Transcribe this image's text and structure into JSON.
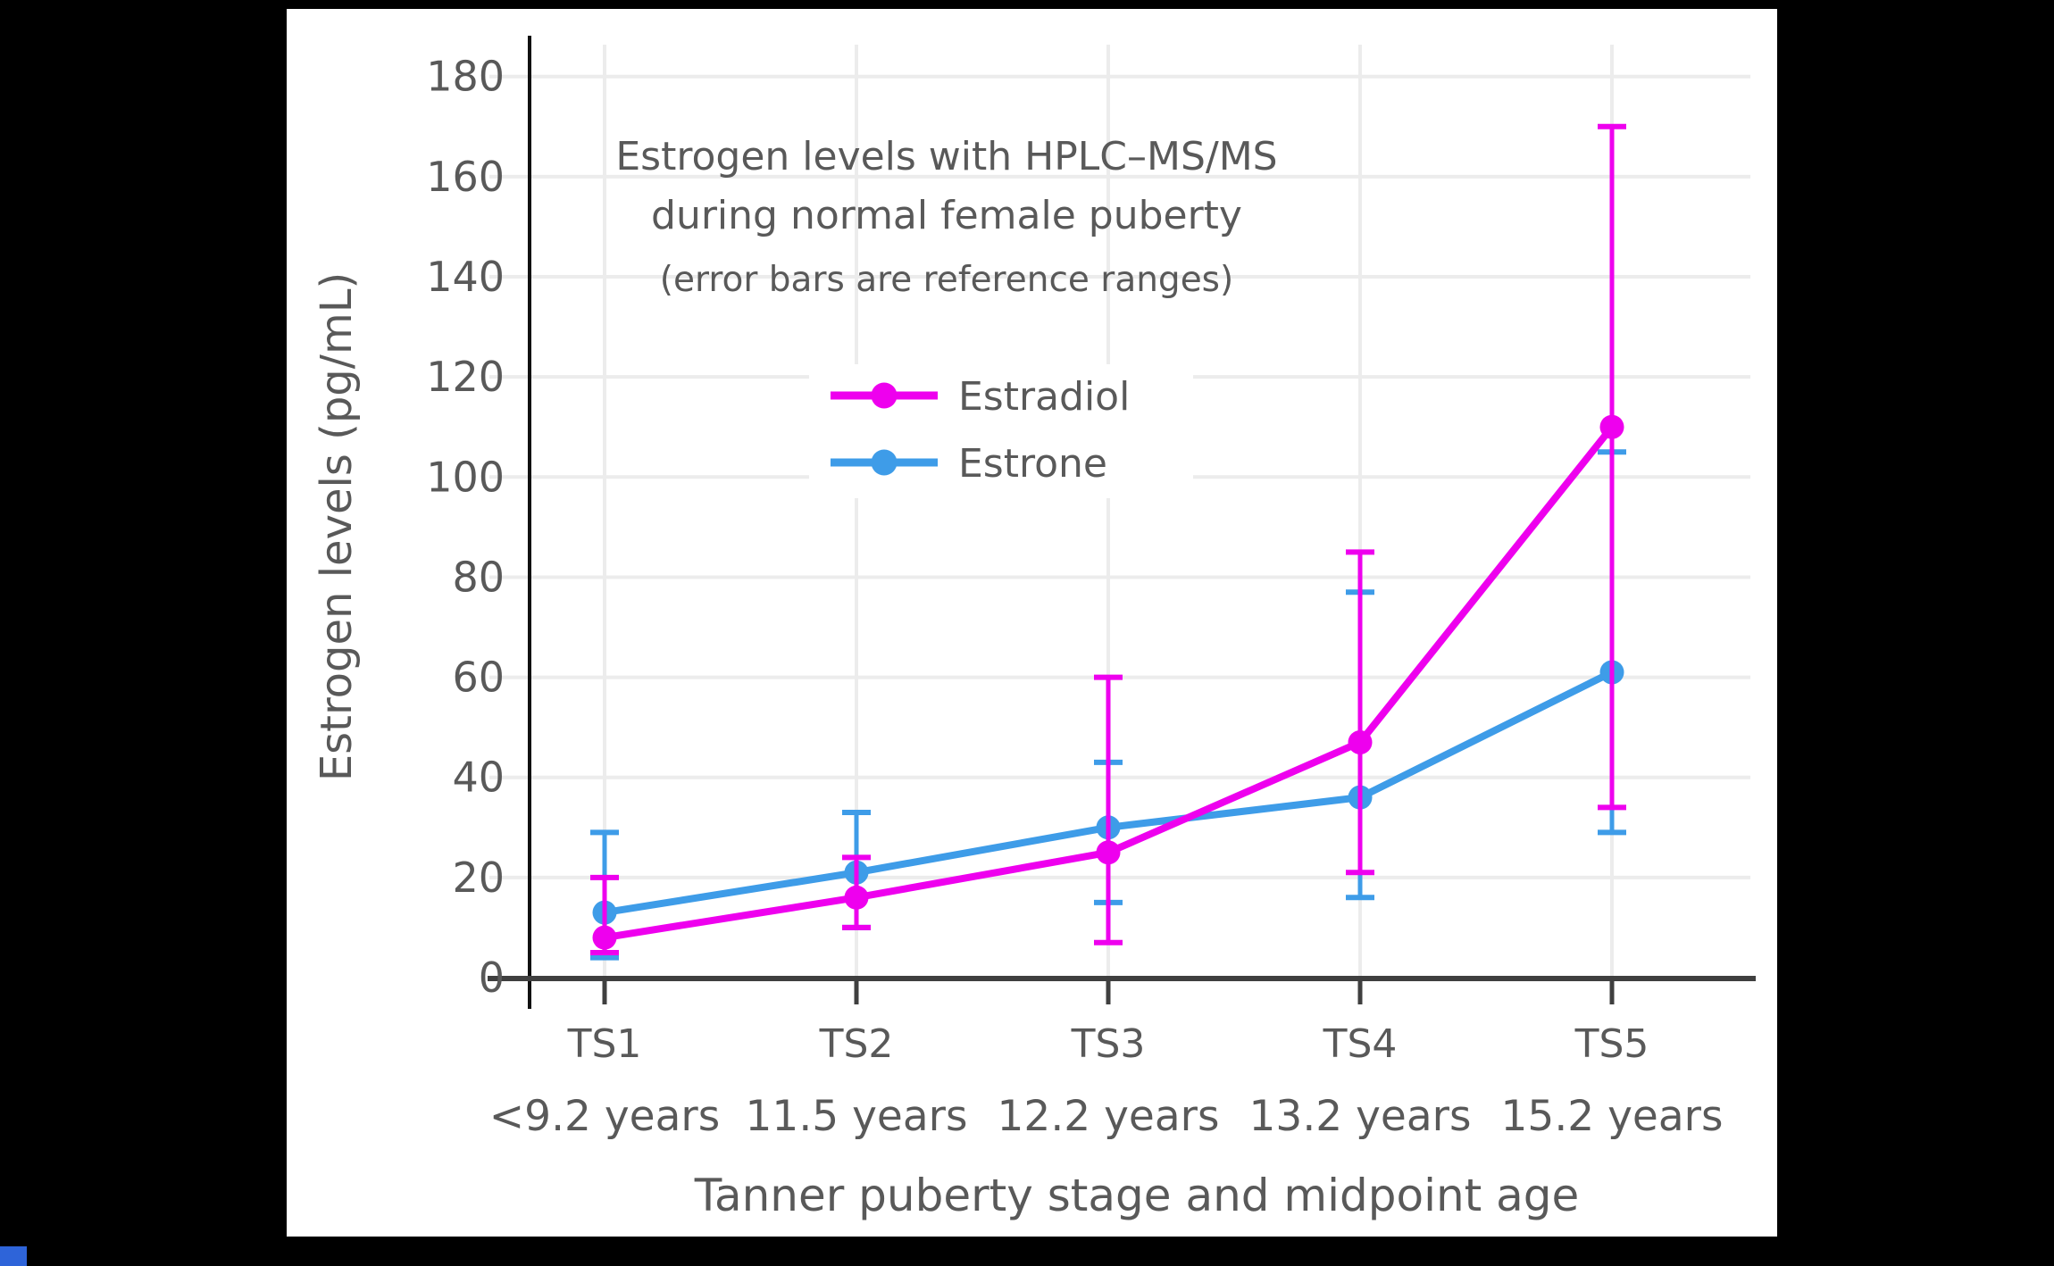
{
  "frame": {
    "background_color": "#000000",
    "panel_color": "#ffffff",
    "corner_square_color": "#2e64d9"
  },
  "chart_data": {
    "type": "line",
    "title_line1": "Estrogen levels with HPLC–MS/MS",
    "title_line2": "during normal female puberty",
    "subtitle": "(error bars are reference ranges)",
    "xlabel": "Tanner puberty stage and midpoint age",
    "ylabel": "Estrogen levels (pg/mL)",
    "categories": [
      "TS1",
      "TS2",
      "TS3",
      "TS4",
      "TS5"
    ],
    "category_sublabels": [
      "<9.2 years",
      "11.5 years",
      "12.2 years",
      "13.2 years",
      "15.2 years"
    ],
    "y_ticks": [
      0,
      20,
      40,
      60,
      80,
      100,
      120,
      140,
      160,
      180
    ],
    "ylim": [
      0,
      186
    ],
    "grid": true,
    "text_color": "#595959",
    "grid_color": "#ececec",
    "axis_color": "#3f3f3f",
    "spine_color": "#111111",
    "legend": {
      "position": "inside-top-center",
      "order": [
        "Estradiol",
        "Estrone"
      ]
    },
    "series": [
      {
        "name": "Estrone",
        "color": "#3e9ce8",
        "values": [
          13,
          21,
          30,
          36,
          61
        ],
        "error_low": [
          4,
          10,
          15,
          16,
          29
        ],
        "error_high": [
          29,
          33,
          43,
          77,
          105
        ]
      },
      {
        "name": "Estradiol",
        "color": "#ee00ee",
        "values": [
          8,
          16,
          25,
          47,
          110
        ],
        "error_low": [
          5,
          10,
          7,
          21,
          34
        ],
        "error_high": [
          20,
          24,
          60,
          85,
          170
        ]
      }
    ]
  }
}
